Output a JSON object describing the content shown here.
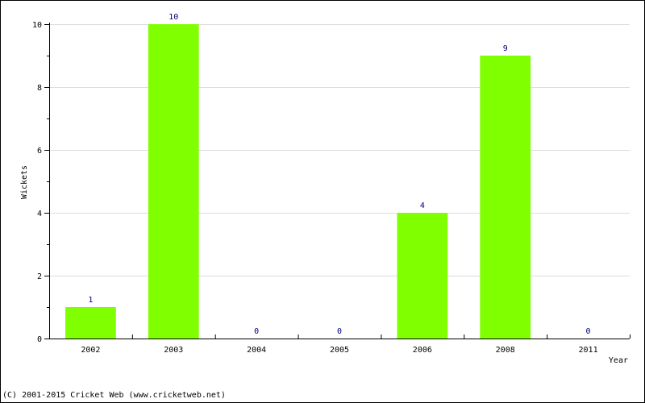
{
  "chart_data": {
    "type": "bar",
    "categories": [
      "2002",
      "2003",
      "2004",
      "2005",
      "2006",
      "2008",
      "2011"
    ],
    "values": [
      1,
      10,
      0,
      0,
      4,
      9,
      0
    ],
    "xlabel": "Year",
    "ylabel": "Wickets",
    "ylim": [
      0,
      10
    ],
    "yticks": [
      0,
      2,
      4,
      6,
      8,
      10
    ],
    "grid": true,
    "bar_color": "#80ff00",
    "value_label_color": "#000080"
  },
  "footer": {
    "copyright": "(C) 2001-2015 Cricket Web (www.cricketweb.net)"
  }
}
